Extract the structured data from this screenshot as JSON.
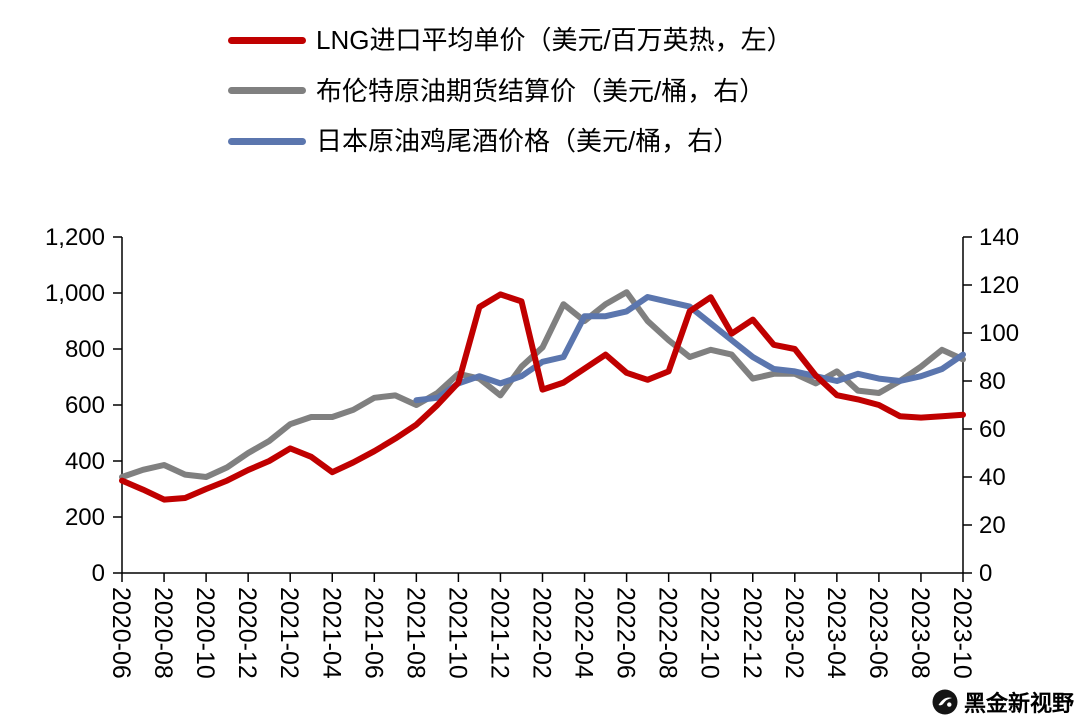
{
  "legend": {
    "items": [
      {
        "label": "LNG进口平均单价（美元/百万英热，左）",
        "color": "#C00000"
      },
      {
        "label": "布伦特原油期货结算价（美元/桶，右）",
        "color": "#808080"
      },
      {
        "label": "日本原油鸡尾酒价格（美元/桶，右）",
        "color": "#5B76AE"
      }
    ]
  },
  "watermark": {
    "text": "黑金新视野"
  },
  "chart_data": {
    "type": "line",
    "grid": false,
    "legend_position": "top-left",
    "x": [
      "2020-06",
      "2020-07",
      "2020-08",
      "2020-09",
      "2020-10",
      "2020-11",
      "2020-12",
      "2021-01",
      "2021-02",
      "2021-03",
      "2021-04",
      "2021-05",
      "2021-06",
      "2021-07",
      "2021-08",
      "2021-09",
      "2021-10",
      "2021-11",
      "2021-12",
      "2022-01",
      "2022-02",
      "2022-03",
      "2022-04",
      "2022-05",
      "2022-06",
      "2022-07",
      "2022-08",
      "2022-09",
      "2022-10",
      "2022-11",
      "2022-12",
      "2023-01",
      "2023-02",
      "2023-03",
      "2023-04",
      "2023-05",
      "2023-06",
      "2023-07",
      "2023-08",
      "2023-09",
      "2023-10"
    ],
    "x_tick_every": 2,
    "x_tick_labels": [
      "2020-06",
      "2020-08",
      "2020-10",
      "2020-12",
      "2021-02",
      "2021-04",
      "2021-06",
      "2021-08",
      "2021-10",
      "2021-12",
      "2022-02",
      "2022-04",
      "2022-06",
      "2022-08",
      "2022-10",
      "2022-12",
      "2023-02",
      "2023-04",
      "2023-06",
      "2023-08",
      "2023-10"
    ],
    "left_axis": {
      "min": 0,
      "max": 1200,
      "step": 200,
      "tick_labels": [
        "0",
        "200",
        "400",
        "600",
        "800",
        "1,000",
        "1,200"
      ]
    },
    "right_axis": {
      "min": 0,
      "max": 140,
      "step": 20,
      "tick_labels": [
        "0",
        "20",
        "40",
        "60",
        "80",
        "100",
        "120",
        "140"
      ]
    },
    "series": [
      {
        "name": "LNG进口平均单价（美元/百万英热，左）",
        "axis": "left",
        "color": "#C00000",
        "values": [
          330,
          298,
          262,
          268,
          300,
          330,
          368,
          400,
          445,
          415,
          360,
          395,
          435,
          480,
          530,
          600,
          680,
          950,
          995,
          970,
          655,
          680,
          730,
          780,
          715,
          690,
          720,
          935,
          985,
          855,
          905,
          815,
          800,
          705,
          635,
          620,
          600,
          560,
          555,
          560,
          565
        ]
      },
      {
        "name": "布伦特原油期货结算价（美元/桶，右）",
        "axis": "right",
        "color": "#808080",
        "values": [
          40,
          43,
          45,
          41,
          40,
          44,
          50,
          55,
          62,
          65,
          65,
          68,
          73,
          74,
          70,
          75,
          83,
          81,
          74,
          86,
          94,
          112,
          105,
          112,
          117,
          105,
          97,
          90,
          93,
          91,
          81,
          83,
          83,
          79,
          84,
          76,
          75,
          80,
          86,
          93,
          89
        ]
      },
      {
        "name": "日本原油鸡尾酒价格（美元/桶，右）",
        "axis": "right",
        "color": "#5B76AE",
        "values": [
          null,
          null,
          null,
          null,
          null,
          null,
          null,
          null,
          null,
          null,
          null,
          null,
          null,
          null,
          72,
          73,
          79,
          82,
          79,
          82,
          88,
          90,
          107,
          107,
          109,
          115,
          113,
          111,
          104,
          97,
          90,
          85,
          84,
          82,
          80,
          83,
          81,
          80,
          82,
          85,
          91
        ]
      }
    ]
  }
}
